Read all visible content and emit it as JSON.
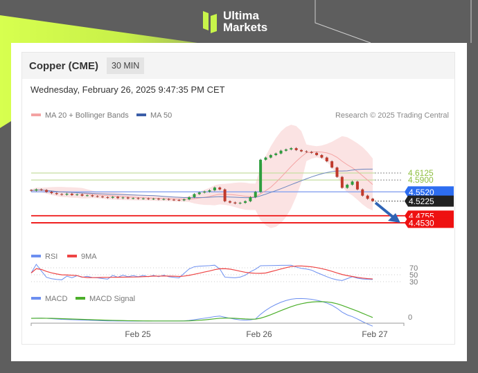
{
  "brand": {
    "name_line1": "Ultima",
    "name_line2": "Markets"
  },
  "header": {
    "title": "Copper (CME)",
    "interval": "30 MIN"
  },
  "timestamp": "Wednesday, February 26, 2025 9:47:35 PM CET",
  "colors": {
    "ma20": "#f4a3a3",
    "ma50": "#3b5ea8",
    "bands": "#fadada",
    "up": "#2e9e3e",
    "down": "#c0392b",
    "resistance": "#8dbe3f",
    "pivot": "#2d6df0",
    "current": "#222222",
    "support": "#ee1111",
    "rsi": "#6c8ff0",
    "rsi_ma": "#ee4444",
    "macd": "#6c8ff0",
    "macd_signal": "#4caf2a"
  },
  "chart_data": {
    "type": "candlestick",
    "legend": [
      "MA 20 + Bollinger Bands",
      "MA 50"
    ],
    "credit": "Research © 2025 Trading Central",
    "x_ticks": [
      "Feb 25",
      "Feb 26",
      "Feb 27"
    ],
    "close": [
      4.556,
      4.56,
      4.558,
      4.552,
      4.548,
      4.545,
      4.543,
      4.546,
      4.542,
      4.544,
      4.54,
      4.541,
      4.538,
      4.537,
      4.535,
      4.533,
      4.536,
      4.532,
      4.534,
      4.531,
      4.532,
      4.53,
      4.531,
      4.529,
      4.53,
      4.528,
      4.529,
      4.527,
      4.526,
      4.525,
      4.528,
      4.535,
      4.545,
      4.55,
      4.553,
      4.557,
      4.566,
      4.56,
      4.522,
      4.518,
      4.515,
      4.517,
      4.522,
      4.535,
      4.552,
      4.655,
      4.662,
      4.67,
      4.675,
      4.684,
      4.688,
      4.692,
      4.686,
      4.682,
      4.68,
      4.677,
      4.67,
      4.662,
      4.65,
      4.63,
      4.6,
      4.565,
      4.575,
      4.585,
      4.56,
      4.54,
      4.53,
      4.5225
    ],
    "levels": [
      {
        "value": "4.6125",
        "kind": "resistance"
      },
      {
        "value": "4.5900",
        "kind": "resistance"
      },
      {
        "value": "4.5520",
        "kind": "pivot"
      },
      {
        "value": "4.5225",
        "kind": "current"
      },
      {
        "value": "4.4755",
        "kind": "support"
      },
      {
        "value": "4.4530",
        "kind": "support"
      }
    ],
    "forecast_arrow": "down",
    "rsi": {
      "legend": [
        "RSI",
        "9MA"
      ],
      "ticks": [
        "70",
        "50",
        "30"
      ]
    },
    "macd": {
      "legend": [
        "MACD",
        "MACD Signal"
      ],
      "ticks": [
        "0"
      ]
    }
  }
}
